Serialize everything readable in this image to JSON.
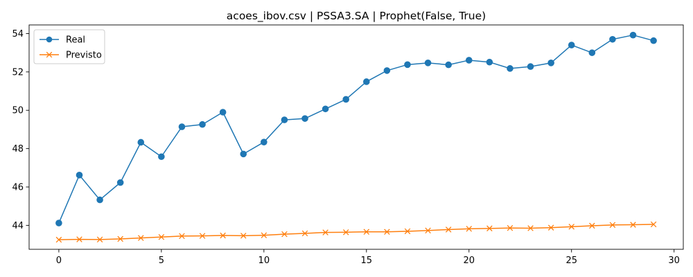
{
  "chart_data": {
    "type": "line",
    "title": "acoes_ibov.csv | PSSA3.SA | Prophet(False, True)",
    "xlabel": "",
    "ylabel": "",
    "xlim": [
      -1.45,
      30.45
    ],
    "ylim": [
      42.75,
      54.45
    ],
    "xticks": [
      0,
      5,
      10,
      15,
      20,
      25,
      30
    ],
    "yticks": [
      44,
      46,
      48,
      50,
      52,
      54
    ],
    "grid": false,
    "legend_position": "upper-left",
    "x": [
      0,
      1,
      2,
      3,
      4,
      5,
      6,
      7,
      8,
      9,
      10,
      11,
      12,
      13,
      14,
      15,
      16,
      17,
      18,
      19,
      20,
      21,
      22,
      23,
      24,
      25,
      26,
      27,
      28,
      29
    ],
    "series": [
      {
        "name": "Real",
        "color": "#1f77b4",
        "marker": "circle",
        "values": [
          44.12,
          46.62,
          45.33,
          46.23,
          48.33,
          47.58,
          49.14,
          49.26,
          49.9,
          47.72,
          48.34,
          49.5,
          49.57,
          50.07,
          50.57,
          51.49,
          52.07,
          52.38,
          52.47,
          52.37,
          52.61,
          52.51,
          52.18,
          52.28,
          52.47,
          53.4,
          53.0,
          53.7,
          53.92,
          53.63
        ]
      },
      {
        "name": "Previsto",
        "color": "#ff7f0e",
        "marker": "x",
        "values": [
          43.25,
          43.27,
          43.26,
          43.29,
          43.34,
          43.39,
          43.44,
          43.45,
          43.47,
          43.46,
          43.48,
          43.54,
          43.58,
          43.63,
          43.64,
          43.66,
          43.66,
          43.69,
          43.73,
          43.78,
          43.82,
          43.84,
          43.86,
          43.85,
          43.88,
          43.93,
          43.98,
          44.02,
          44.03,
          44.05
        ]
      }
    ]
  }
}
